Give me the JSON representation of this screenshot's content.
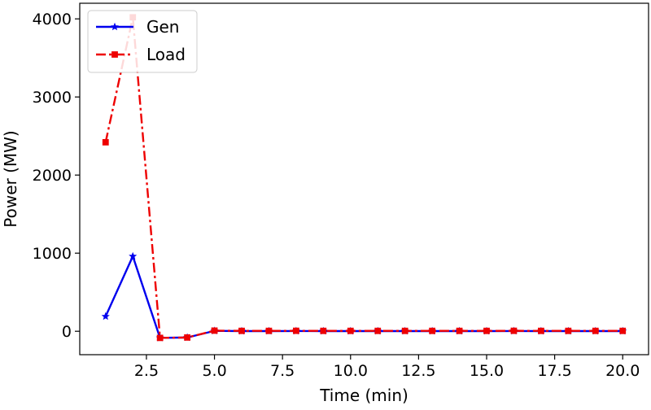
{
  "chart_data": {
    "type": "line",
    "title": "",
    "xlabel": "Time (min)",
    "ylabel": "Power (MW)",
    "xlim": [
      0.05,
      20.95
    ],
    "ylim": [
      -300,
      4200
    ],
    "x_ticks": [
      2.5,
      5.0,
      7.5,
      10.0,
      12.5,
      15.0,
      17.5,
      20.0
    ],
    "x_tick_labels": [
      "2.5",
      "5.0",
      "7.5",
      "10.0",
      "12.5",
      "15.0",
      "17.5",
      "20.0"
    ],
    "y_ticks": [
      0,
      1000,
      2000,
      3000,
      4000
    ],
    "y_tick_labels": [
      "0",
      "1000",
      "2000",
      "3000",
      "4000"
    ],
    "grid": false,
    "legend_position": "upper-left",
    "x": [
      1,
      2,
      3,
      4,
      5,
      6,
      7,
      8,
      9,
      10,
      11,
      12,
      13,
      14,
      15,
      16,
      17,
      18,
      19,
      20
    ],
    "series": [
      {
        "name": "Gen",
        "color": "#0000ee",
        "line_style": "solid",
        "marker": "star",
        "values": [
          190,
          960,
          -85,
          -80,
          5,
          2,
          2,
          3,
          2,
          2,
          2,
          2,
          2,
          2,
          2,
          3,
          2,
          2,
          2,
          2
        ]
      },
      {
        "name": "Load",
        "color": "#ee0000",
        "line_style": "dashdot",
        "marker": "square",
        "values": [
          2420,
          4020,
          -85,
          -80,
          8,
          5,
          5,
          6,
          5,
          5,
          5,
          5,
          5,
          5,
          5,
          6,
          5,
          5,
          5,
          5
        ]
      }
    ]
  }
}
